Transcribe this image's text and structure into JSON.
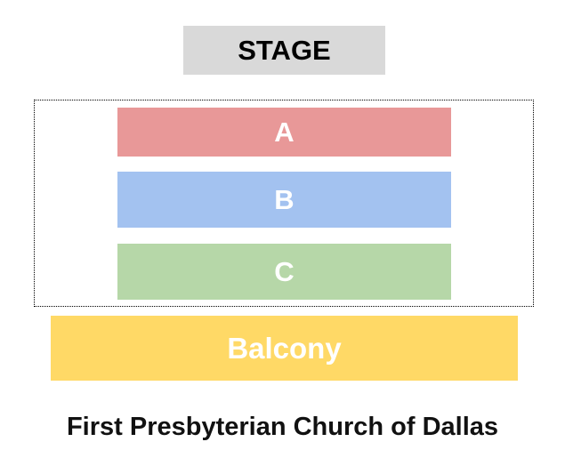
{
  "stage": {
    "label": "STAGE",
    "color": "#d9d9d9"
  },
  "sections": [
    {
      "label": "A",
      "color": "#e89898"
    },
    {
      "label": "B",
      "color": "#a3c2f0"
    },
    {
      "label": "C",
      "color": "#b6d7a8"
    }
  ],
  "balcony": {
    "label": "Balcony",
    "color": "#ffd966"
  },
  "venue_title": "First Presbyterian Church of Dallas"
}
